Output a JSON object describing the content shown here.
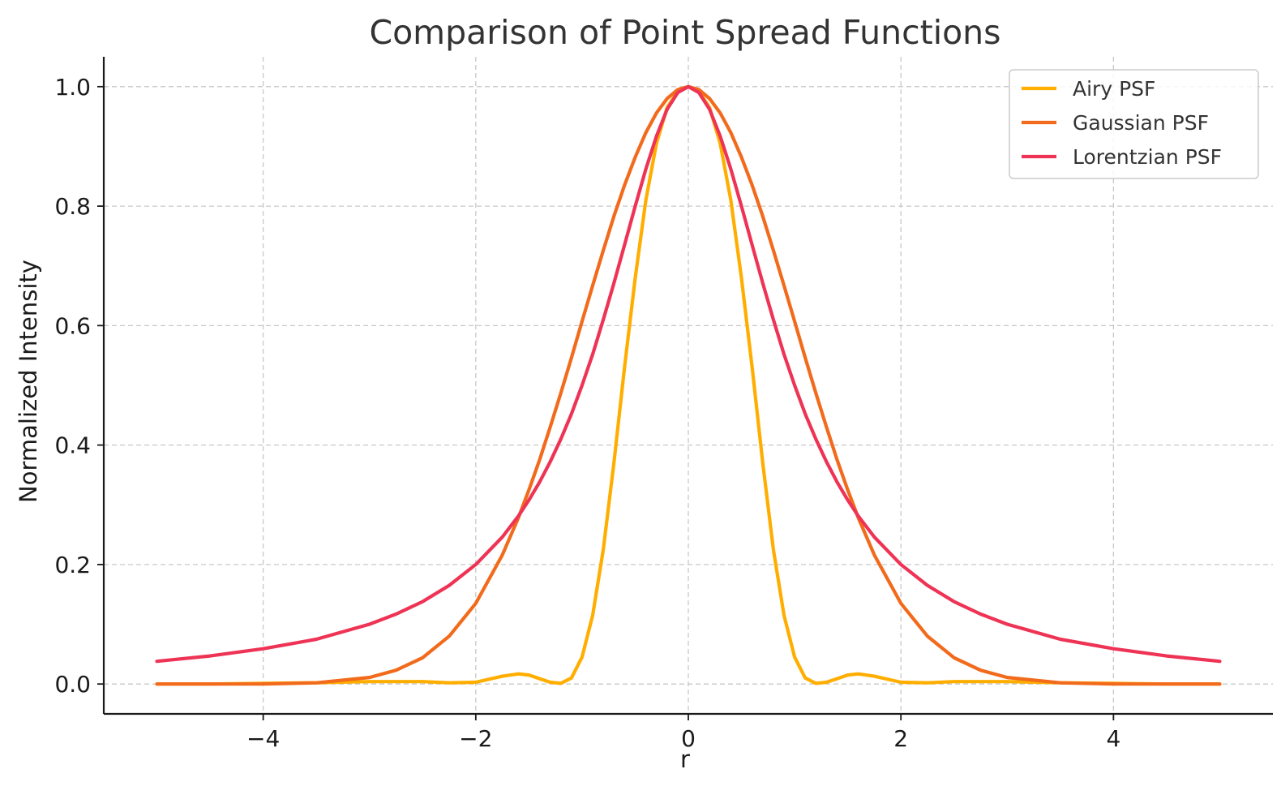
{
  "chart_data": {
    "type": "line",
    "title": "Comparison of Point Spread Functions",
    "xlabel": "r",
    "ylabel": "Normalized Intensity",
    "xlim": [
      -5.5,
      5.5
    ],
    "ylim": [
      -0.05,
      1.05
    ],
    "xticks": [
      -4,
      -2,
      0,
      2,
      4
    ],
    "xtick_labels": [
      "−4",
      "−2",
      "0",
      "2",
      "4"
    ],
    "yticks": [
      0.0,
      0.2,
      0.4,
      0.6,
      0.8,
      1.0
    ],
    "ytick_labels": [
      "0.0",
      "0.2",
      "0.4",
      "0.6",
      "0.8",
      "1.0"
    ],
    "grid": true,
    "legend_position": "top-right",
    "x": [
      -5.0,
      -4.5,
      -4.0,
      -3.5,
      -3.0,
      -2.75,
      -2.5,
      -2.25,
      -2.0,
      -1.75,
      -1.6,
      -1.5,
      -1.4,
      -1.3,
      -1.2,
      -1.1,
      -1.0,
      -0.9,
      -0.8,
      -0.7,
      -0.6,
      -0.5,
      -0.4,
      -0.3,
      -0.2,
      -0.1,
      0.0,
      0.1,
      0.2,
      0.3,
      0.4,
      0.5,
      0.6,
      0.7,
      0.8,
      0.9,
      1.0,
      1.1,
      1.2,
      1.3,
      1.4,
      1.5,
      1.6,
      1.75,
      2.0,
      2.25,
      2.5,
      2.75,
      3.0,
      3.5,
      4.0,
      4.5,
      5.0
    ],
    "series": [
      {
        "name": "Airy PSF",
        "color": "#ffae00",
        "values": [
          0.0,
          0.0,
          0.001,
          0.002,
          0.004,
          0.004,
          0.004,
          0.002,
          0.003,
          0.013,
          0.017,
          0.015,
          0.009,
          0.003,
          0.001,
          0.01,
          0.045,
          0.115,
          0.225,
          0.37,
          0.53,
          0.68,
          0.81,
          0.905,
          0.965,
          0.992,
          1.0,
          0.992,
          0.965,
          0.905,
          0.81,
          0.68,
          0.53,
          0.37,
          0.225,
          0.115,
          0.045,
          0.01,
          0.001,
          0.003,
          0.009,
          0.015,
          0.017,
          0.013,
          0.003,
          0.002,
          0.004,
          0.004,
          0.004,
          0.002,
          0.001,
          0.0,
          0.0
        ]
      },
      {
        "name": "Gaussian PSF",
        "color": "#f26a1b",
        "values": [
          0.0,
          0.0,
          0.0,
          0.002,
          0.011,
          0.023,
          0.044,
          0.08,
          0.135,
          0.216,
          0.278,
          0.325,
          0.375,
          0.43,
          0.487,
          0.546,
          0.607,
          0.667,
          0.726,
          0.783,
          0.835,
          0.882,
          0.923,
          0.956,
          0.98,
          0.995,
          1.0,
          0.995,
          0.98,
          0.956,
          0.923,
          0.882,
          0.835,
          0.783,
          0.726,
          0.667,
          0.607,
          0.546,
          0.487,
          0.43,
          0.375,
          0.325,
          0.278,
          0.216,
          0.135,
          0.08,
          0.044,
          0.023,
          0.011,
          0.002,
          0.0,
          0.0,
          0.0
        ]
      },
      {
        "name": "Lorentzian PSF",
        "color": "#ee3355",
        "values": [
          0.038,
          0.047,
          0.059,
          0.075,
          0.1,
          0.117,
          0.138,
          0.165,
          0.2,
          0.246,
          0.281,
          0.308,
          0.338,
          0.372,
          0.41,
          0.452,
          0.5,
          0.552,
          0.61,
          0.671,
          0.735,
          0.8,
          0.862,
          0.917,
          0.962,
          0.99,
          1.0,
          0.99,
          0.962,
          0.917,
          0.862,
          0.8,
          0.735,
          0.671,
          0.61,
          0.552,
          0.5,
          0.452,
          0.41,
          0.372,
          0.338,
          0.308,
          0.281,
          0.246,
          0.2,
          0.165,
          0.138,
          0.117,
          0.1,
          0.075,
          0.059,
          0.047,
          0.038
        ]
      }
    ]
  }
}
